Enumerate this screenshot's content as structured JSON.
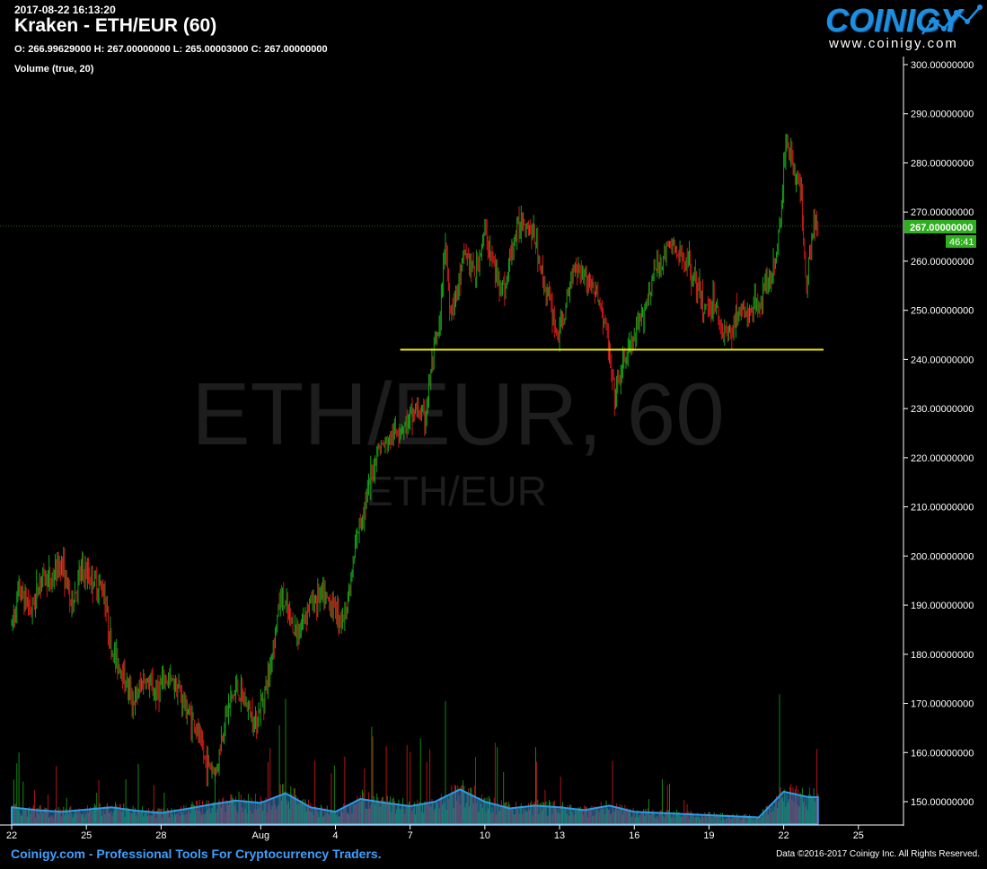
{
  "header": {
    "timestamp": "2017-08-22 16:13:20",
    "title": "Kraken - ETH/EUR (60)",
    "ohlc": "O: 266.99629000 H: 267.00000000 L: 265.00003000 C: 267.00000000",
    "volume_label": "Volume (true, 20)"
  },
  "logo": {
    "name": "COINIGY",
    "url": "www.coinigy.com"
  },
  "watermark": {
    "large": "ETH/EUR, 60",
    "small": "ETH/EUR"
  },
  "footer": {
    "left": "Coinigy.com - Professional Tools For Cryptocurrency Traders.",
    "right": "Data ©2016-2017 Coinigy Inc. All Rights Reserved."
  },
  "price_tag": {
    "value": "267.00000000",
    "countdown": "46:41"
  },
  "colors": {
    "up": "#18a018",
    "down": "#d01818",
    "volume_area": "#1f7fc4",
    "support_line": "#e8e800",
    "price_tag": "#2fae1f",
    "axis_text": "#ffffff"
  },
  "chart_data": {
    "type": "candlestick",
    "y_axis": {
      "range": [
        145,
        300
      ],
      "ticks": [
        "300.00000000",
        "290.00000000",
        "280.00000000",
        "270.00000000",
        "260.00000000",
        "250.00000000",
        "240.00000000",
        "230.00000000",
        "220.00000000",
        "210.00000000",
        "200.00000000",
        "190.00000000",
        "180.00000000",
        "170.00000000",
        "160.00000000",
        "150.00000000"
      ],
      "tick_values": [
        300,
        290,
        280,
        270,
        260,
        250,
        240,
        230,
        220,
        210,
        200,
        190,
        180,
        170,
        160,
        150
      ]
    },
    "x_axis": {
      "ticks": [
        "22",
        "25",
        "28",
        "Aug",
        "4",
        "7",
        "10",
        "13",
        "16",
        "19",
        "22",
        "25"
      ],
      "tick_days": [
        0,
        3,
        6,
        10,
        13,
        16,
        19,
        22,
        25,
        28,
        31,
        34
      ],
      "range_days": [
        -0.2,
        36
      ]
    },
    "last_price": 267,
    "support_line": {
      "price": 242,
      "from_day": 15.6,
      "to_day": 32.6
    },
    "price_path": [
      [
        0,
        186
      ],
      [
        0.3,
        193
      ],
      [
        0.8,
        189
      ],
      [
        1.2,
        196
      ],
      [
        1.6,
        195
      ],
      [
        2.0,
        199
      ],
      [
        2.4,
        190
      ],
      [
        2.8,
        197
      ],
      [
        3.3,
        195
      ],
      [
        3.7,
        193
      ],
      [
        4.0,
        181
      ],
      [
        4.4,
        177
      ],
      [
        4.9,
        170
      ],
      [
        5.3,
        175
      ],
      [
        5.8,
        172
      ],
      [
        6.2,
        175
      ],
      [
        6.6,
        174
      ],
      [
        7.0,
        169
      ],
      [
        7.4,
        165
      ],
      [
        7.8,
        158
      ],
      [
        8.2,
        156
      ],
      [
        8.6,
        168
      ],
      [
        9.0,
        173
      ],
      [
        9.4,
        170
      ],
      [
        9.8,
        166
      ],
      [
        10.3,
        175
      ],
      [
        10.8,
        192
      ],
      [
        11.1,
        188
      ],
      [
        11.5,
        184
      ],
      [
        11.9,
        190
      ],
      [
        12.4,
        192
      ],
      [
        12.9,
        190
      ],
      [
        13.3,
        187
      ],
      [
        13.6,
        194
      ],
      [
        13.9,
        205
      ],
      [
        14.3,
        213
      ],
      [
        14.7,
        222
      ],
      [
        15.1,
        223
      ],
      [
        15.5,
        226
      ],
      [
        15.9,
        227
      ],
      [
        16.2,
        230
      ],
      [
        16.6,
        228
      ],
      [
        16.9,
        240
      ],
      [
        17.2,
        247
      ],
      [
        17.4,
        265
      ],
      [
        17.6,
        250
      ],
      [
        17.9,
        254
      ],
      [
        18.2,
        262
      ],
      [
        18.6,
        257
      ],
      [
        19.0,
        266
      ],
      [
        19.4,
        258
      ],
      [
        19.8,
        254
      ],
      [
        20.1,
        263
      ],
      [
        20.5,
        269
      ],
      [
        21.0,
        265
      ],
      [
        21.3,
        257
      ],
      [
        21.6,
        252
      ],
      [
        21.9,
        245
      ],
      [
        22.2,
        249
      ],
      [
        22.6,
        260
      ],
      [
        22.9,
        258
      ],
      [
        23.3,
        255
      ],
      [
        23.6,
        252
      ],
      [
        23.9,
        245
      ],
      [
        24.2,
        232
      ],
      [
        24.6,
        240
      ],
      [
        25.0,
        244
      ],
      [
        25.4,
        250
      ],
      [
        25.8,
        258
      ],
      [
        26.1,
        260
      ],
      [
        26.5,
        264
      ],
      [
        26.8,
        260
      ],
      [
        27.1,
        261
      ],
      [
        27.5,
        255
      ],
      [
        27.8,
        250
      ],
      [
        28.2,
        252
      ],
      [
        28.5,
        246
      ],
      [
        28.8,
        245
      ],
      [
        29.2,
        250
      ],
      [
        29.6,
        249
      ],
      [
        29.9,
        251
      ],
      [
        30.3,
        255
      ],
      [
        30.6,
        258
      ],
      [
        30.9,
        270
      ],
      [
        31.1,
        286
      ],
      [
        31.4,
        279
      ],
      [
        31.7,
        274
      ],
      [
        31.9,
        255
      ],
      [
        32.2,
        269
      ],
      [
        32.4,
        265
      ]
    ],
    "volume_profile_days": [
      0,
      1,
      2,
      3,
      4,
      5,
      6,
      7,
      8,
      9,
      10,
      11,
      12,
      13,
      14,
      15,
      16,
      17,
      18,
      19,
      20,
      21,
      22,
      23,
      24,
      25,
      26,
      27,
      28,
      29,
      30,
      31,
      32
    ],
    "volume_profile_values": [
      0.3,
      0.25,
      0.22,
      0.26,
      0.3,
      0.24,
      0.2,
      0.27,
      0.35,
      0.42,
      0.38,
      0.55,
      0.3,
      0.22,
      0.45,
      0.38,
      0.32,
      0.4,
      0.62,
      0.4,
      0.28,
      0.33,
      0.3,
      0.25,
      0.33,
      0.22,
      0.2,
      0.18,
      0.16,
      0.14,
      0.12,
      0.58,
      0.48
    ]
  }
}
